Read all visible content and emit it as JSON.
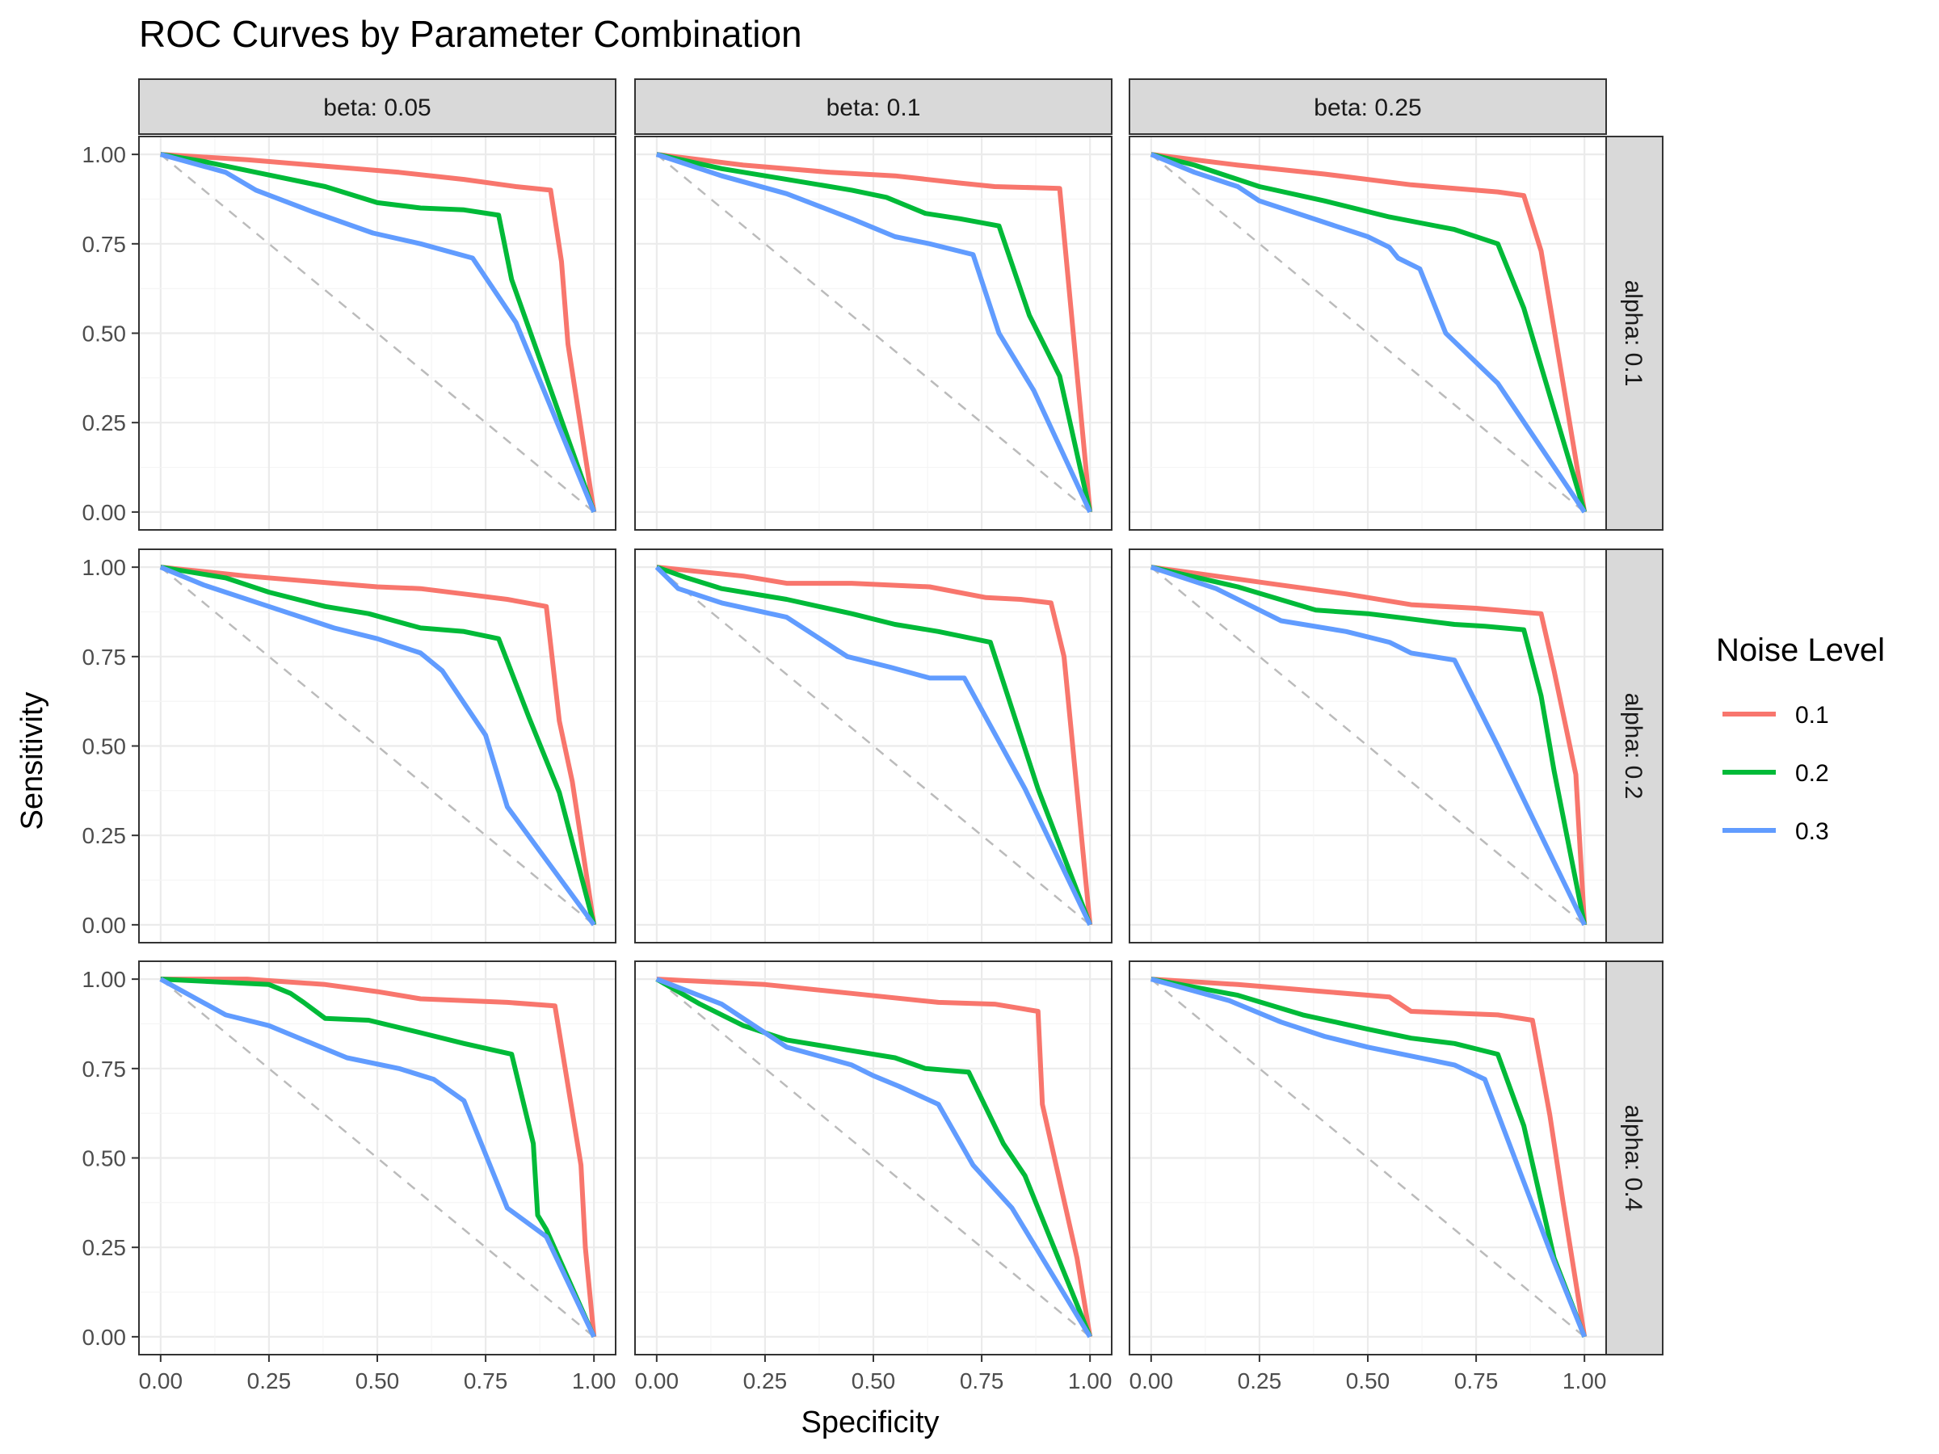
{
  "chart_data": {
    "type": "line",
    "title": "ROC Curves by Parameter Combination",
    "xlabel": "Specificity",
    "ylabel": "Sensitivity",
    "xlim": [
      0,
      1
    ],
    "ylim": [
      0,
      1
    ],
    "x_ticks": [
      "0.00",
      "0.25",
      "0.50",
      "0.75",
      "1.00"
    ],
    "y_ticks": [
      "0.00",
      "0.25",
      "0.50",
      "0.75",
      "1.00"
    ],
    "grid": true,
    "legend": {
      "title": "Noise Level",
      "position": "right",
      "entries": [
        {
          "label": "0.1",
          "color": "#F8766D"
        },
        {
          "label": "0.2",
          "color": "#00BA38"
        },
        {
          "label": "0.3",
          "color": "#619CFF"
        }
      ]
    },
    "reference_line": {
      "x": [
        0,
        1
      ],
      "y": [
        1,
        0
      ],
      "style": "dashed",
      "color": "#BBBBBB"
    },
    "facet_columns": [
      "beta: 0.05",
      "beta: 0.1",
      "beta: 0.25"
    ],
    "facet_rows": [
      "alpha: 0.1",
      "alpha: 0.2",
      "alpha: 0.4"
    ],
    "panels": [
      {
        "row": 0,
        "col": 0,
        "series": [
          {
            "name": "0.1",
            "x": [
              0,
              0.2,
              0.4,
              0.55,
              0.7,
              0.82,
              0.9,
              0.925,
              0.94,
              1.0
            ],
            "y": [
              1.0,
              0.985,
              0.965,
              0.95,
              0.93,
              0.91,
              0.9,
              0.7,
              0.47,
              0.0
            ]
          },
          {
            "name": "0.2",
            "x": [
              0,
              0.1,
              0.22,
              0.38,
              0.5,
              0.6,
              0.7,
              0.78,
              0.81,
              1.0
            ],
            "y": [
              1.0,
              0.98,
              0.95,
              0.91,
              0.865,
              0.85,
              0.845,
              0.83,
              0.65,
              0.0
            ]
          },
          {
            "name": "0.3",
            "x": [
              0,
              0.15,
              0.22,
              0.35,
              0.49,
              0.6,
              0.72,
              0.82,
              1.0
            ],
            "y": [
              1.0,
              0.95,
              0.9,
              0.84,
              0.78,
              0.75,
              0.71,
              0.53,
              0.0
            ]
          }
        ]
      },
      {
        "row": 0,
        "col": 1,
        "series": [
          {
            "name": "0.1",
            "x": [
              0,
              0.2,
              0.4,
              0.55,
              0.7,
              0.78,
              0.93,
              1.0
            ],
            "y": [
              1.0,
              0.97,
              0.95,
              0.94,
              0.92,
              0.91,
              0.905,
              0.0
            ]
          },
          {
            "name": "0.2",
            "x": [
              0,
              0.15,
              0.3,
              0.45,
              0.53,
              0.62,
              0.7,
              0.79,
              0.86,
              0.93,
              1.0
            ],
            "y": [
              1.0,
              0.96,
              0.93,
              0.9,
              0.88,
              0.835,
              0.82,
              0.8,
              0.55,
              0.38,
              0.0
            ]
          },
          {
            "name": "0.3",
            "x": [
              0,
              0.15,
              0.3,
              0.45,
              0.55,
              0.63,
              0.73,
              0.79,
              0.87,
              1.0
            ],
            "y": [
              1.0,
              0.94,
              0.89,
              0.82,
              0.77,
              0.75,
              0.72,
              0.5,
              0.34,
              0.0
            ]
          }
        ]
      },
      {
        "row": 0,
        "col": 2,
        "series": [
          {
            "name": "0.1",
            "x": [
              0,
              0.2,
              0.4,
              0.6,
              0.7,
              0.8,
              0.86,
              0.9,
              1.0
            ],
            "y": [
              1.0,
              0.97,
              0.945,
              0.915,
              0.905,
              0.895,
              0.885,
              0.73,
              0.0
            ]
          },
          {
            "name": "0.2",
            "x": [
              0,
              0.1,
              0.25,
              0.4,
              0.55,
              0.7,
              0.8,
              0.86,
              1.0
            ],
            "y": [
              1.0,
              0.97,
              0.91,
              0.87,
              0.825,
              0.79,
              0.75,
              0.57,
              0.0
            ]
          },
          {
            "name": "0.3",
            "x": [
              0,
              0.1,
              0.2,
              0.25,
              0.35,
              0.5,
              0.55,
              0.57,
              0.62,
              0.68,
              0.8,
              1.0
            ],
            "y": [
              1.0,
              0.95,
              0.91,
              0.87,
              0.83,
              0.77,
              0.74,
              0.71,
              0.68,
              0.5,
              0.36,
              0.0
            ]
          }
        ]
      },
      {
        "row": 1,
        "col": 0,
        "series": [
          {
            "name": "0.1",
            "x": [
              0,
              0.2,
              0.4,
              0.5,
              0.6,
              0.7,
              0.8,
              0.89,
              0.92,
              0.95,
              1.0
            ],
            "y": [
              1.0,
              0.975,
              0.955,
              0.945,
              0.94,
              0.925,
              0.91,
              0.89,
              0.57,
              0.4,
              0.0
            ]
          },
          {
            "name": "0.2",
            "x": [
              0,
              0.15,
              0.25,
              0.38,
              0.48,
              0.6,
              0.7,
              0.78,
              0.85,
              0.92,
              1.0
            ],
            "y": [
              1.0,
              0.97,
              0.93,
              0.89,
              0.87,
              0.83,
              0.82,
              0.8,
              0.58,
              0.37,
              0.0
            ]
          },
          {
            "name": "0.3",
            "x": [
              0,
              0.1,
              0.25,
              0.4,
              0.5,
              0.6,
              0.65,
              0.75,
              0.8,
              1.0
            ],
            "y": [
              1.0,
              0.95,
              0.89,
              0.83,
              0.8,
              0.76,
              0.71,
              0.53,
              0.33,
              0.0
            ]
          }
        ]
      },
      {
        "row": 1,
        "col": 1,
        "series": [
          {
            "name": "0.1",
            "x": [
              0,
              0.08,
              0.2,
              0.3,
              0.45,
              0.63,
              0.76,
              0.84,
              0.91,
              0.94,
              1.0
            ],
            "y": [
              1.0,
              0.99,
              0.975,
              0.955,
              0.955,
              0.945,
              0.915,
              0.91,
              0.9,
              0.75,
              0.0
            ]
          },
          {
            "name": "0.2",
            "x": [
              0,
              0.07,
              0.15,
              0.3,
              0.45,
              0.55,
              0.65,
              0.77,
              0.88,
              1.0
            ],
            "y": [
              1.0,
              0.97,
              0.94,
              0.91,
              0.87,
              0.84,
              0.82,
              0.79,
              0.38,
              0.0
            ]
          },
          {
            "name": "0.3",
            "x": [
              0,
              0.05,
              0.15,
              0.3,
              0.44,
              0.54,
              0.63,
              0.71,
              0.85,
              1.0
            ],
            "y": [
              1.0,
              0.94,
              0.9,
              0.86,
              0.75,
              0.72,
              0.69,
              0.69,
              0.38,
              0.0
            ]
          }
        ]
      },
      {
        "row": 1,
        "col": 2,
        "series": [
          {
            "name": "0.1",
            "x": [
              0,
              0.15,
              0.3,
              0.45,
              0.6,
              0.75,
              0.9,
              0.93,
              0.98,
              1.0
            ],
            "y": [
              1.0,
              0.975,
              0.95,
              0.925,
              0.895,
              0.885,
              0.87,
              0.71,
              0.42,
              0.0
            ]
          },
          {
            "name": "0.2",
            "x": [
              0,
              0.2,
              0.38,
              0.5,
              0.6,
              0.7,
              0.77,
              0.86,
              0.9,
              0.93,
              1.0
            ],
            "y": [
              1.0,
              0.945,
              0.88,
              0.87,
              0.855,
              0.84,
              0.835,
              0.825,
              0.64,
              0.43,
              0.0
            ]
          },
          {
            "name": "0.3",
            "x": [
              0,
              0.15,
              0.3,
              0.45,
              0.55,
              0.6,
              0.7,
              0.8,
              1.0
            ],
            "y": [
              1.0,
              0.94,
              0.85,
              0.82,
              0.79,
              0.76,
              0.74,
              0.5,
              0.0
            ]
          }
        ]
      },
      {
        "row": 2,
        "col": 0,
        "series": [
          {
            "name": "0.1",
            "x": [
              0,
              0.2,
              0.38,
              0.5,
              0.6,
              0.8,
              0.91,
              0.97,
              0.98,
              1.0
            ],
            "y": [
              1.0,
              1.0,
              0.985,
              0.965,
              0.945,
              0.935,
              0.925,
              0.48,
              0.25,
              0.0
            ]
          },
          {
            "name": "0.2",
            "x": [
              0,
              0.25,
              0.3,
              0.33,
              0.38,
              0.48,
              0.6,
              0.7,
              0.81,
              0.86,
              0.87,
              0.89,
              1.0
            ],
            "y": [
              1.0,
              0.985,
              0.96,
              0.935,
              0.89,
              0.885,
              0.85,
              0.82,
              0.79,
              0.54,
              0.34,
              0.3,
              0.0
            ]
          },
          {
            "name": "0.3",
            "x": [
              0,
              0.15,
              0.25,
              0.35,
              0.43,
              0.55,
              0.63,
              0.7,
              0.8,
              0.89,
              1.0
            ],
            "y": [
              1.0,
              0.9,
              0.87,
              0.82,
              0.78,
              0.75,
              0.72,
              0.66,
              0.36,
              0.28,
              0.0
            ]
          }
        ]
      },
      {
        "row": 2,
        "col": 1,
        "series": [
          {
            "name": "0.1",
            "x": [
              0,
              0.25,
              0.45,
              0.65,
              0.78,
              0.88,
              0.89,
              0.97,
              1.0
            ],
            "y": [
              1.0,
              0.985,
              0.96,
              0.935,
              0.93,
              0.91,
              0.65,
              0.22,
              0.0
            ]
          },
          {
            "name": "0.2",
            "x": [
              0,
              0.1,
              0.2,
              0.3,
              0.45,
              0.55,
              0.62,
              0.72,
              0.8,
              0.85,
              1.0
            ],
            "y": [
              1.0,
              0.93,
              0.87,
              0.83,
              0.8,
              0.78,
              0.75,
              0.74,
              0.54,
              0.45,
              0.0
            ]
          },
          {
            "name": "0.3",
            "x": [
              0,
              0.15,
              0.3,
              0.45,
              0.5,
              0.56,
              0.65,
              0.73,
              0.82,
              1.0
            ],
            "y": [
              1.0,
              0.93,
              0.81,
              0.76,
              0.73,
              0.7,
              0.65,
              0.48,
              0.36,
              0.0
            ]
          }
        ]
      },
      {
        "row": 2,
        "col": 2,
        "series": [
          {
            "name": "0.1",
            "x": [
              0,
              0.2,
              0.4,
              0.55,
              0.6,
              0.7,
              0.8,
              0.88,
              0.92,
              0.95,
              1.0
            ],
            "y": [
              1.0,
              0.985,
              0.965,
              0.95,
              0.91,
              0.905,
              0.9,
              0.885,
              0.62,
              0.38,
              0.0
            ]
          },
          {
            "name": "0.2",
            "x": [
              0,
              0.2,
              0.35,
              0.5,
              0.6,
              0.7,
              0.8,
              0.86,
              0.93,
              1.0
            ],
            "y": [
              1.0,
              0.955,
              0.9,
              0.86,
              0.835,
              0.82,
              0.79,
              0.59,
              0.22,
              0.0
            ]
          },
          {
            "name": "0.3",
            "x": [
              0,
              0.18,
              0.3,
              0.4,
              0.5,
              0.6,
              0.7,
              0.77,
              0.93,
              1.0
            ],
            "y": [
              1.0,
              0.94,
              0.88,
              0.84,
              0.81,
              0.785,
              0.76,
              0.72,
              0.21,
              0.0
            ]
          }
        ]
      }
    ]
  }
}
